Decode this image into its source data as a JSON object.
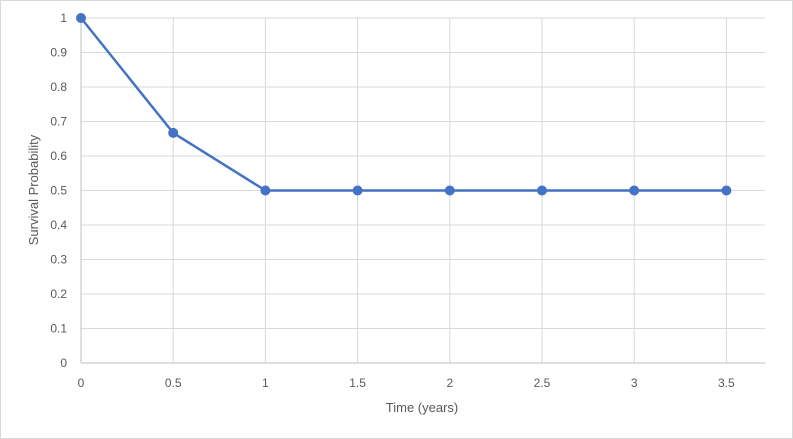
{
  "chart_data": {
    "type": "line",
    "title": "",
    "xlabel": "Time (years)",
    "ylabel": "Survival Probability",
    "xlim": [
      0,
      3.5
    ],
    "ylim": [
      0,
      1
    ],
    "x_ticks": [
      "0",
      "0.5",
      "1",
      "1.5",
      "2",
      "2.5",
      "3",
      "3.5"
    ],
    "y_ticks": [
      "0",
      "0.1",
      "0.2",
      "0.3",
      "0.4",
      "0.5",
      "0.6",
      "0.7",
      "0.8",
      "0.9",
      "1"
    ],
    "grid": true,
    "legend": "none",
    "series": [
      {
        "color": "#4472c4",
        "x": [
          0,
          0.5,
          1,
          1.5,
          2,
          2.5,
          3,
          3.5
        ],
        "y": [
          1,
          0.667,
          0.5,
          0.5,
          0.5,
          0.5,
          0.5,
          0.5
        ]
      }
    ]
  }
}
